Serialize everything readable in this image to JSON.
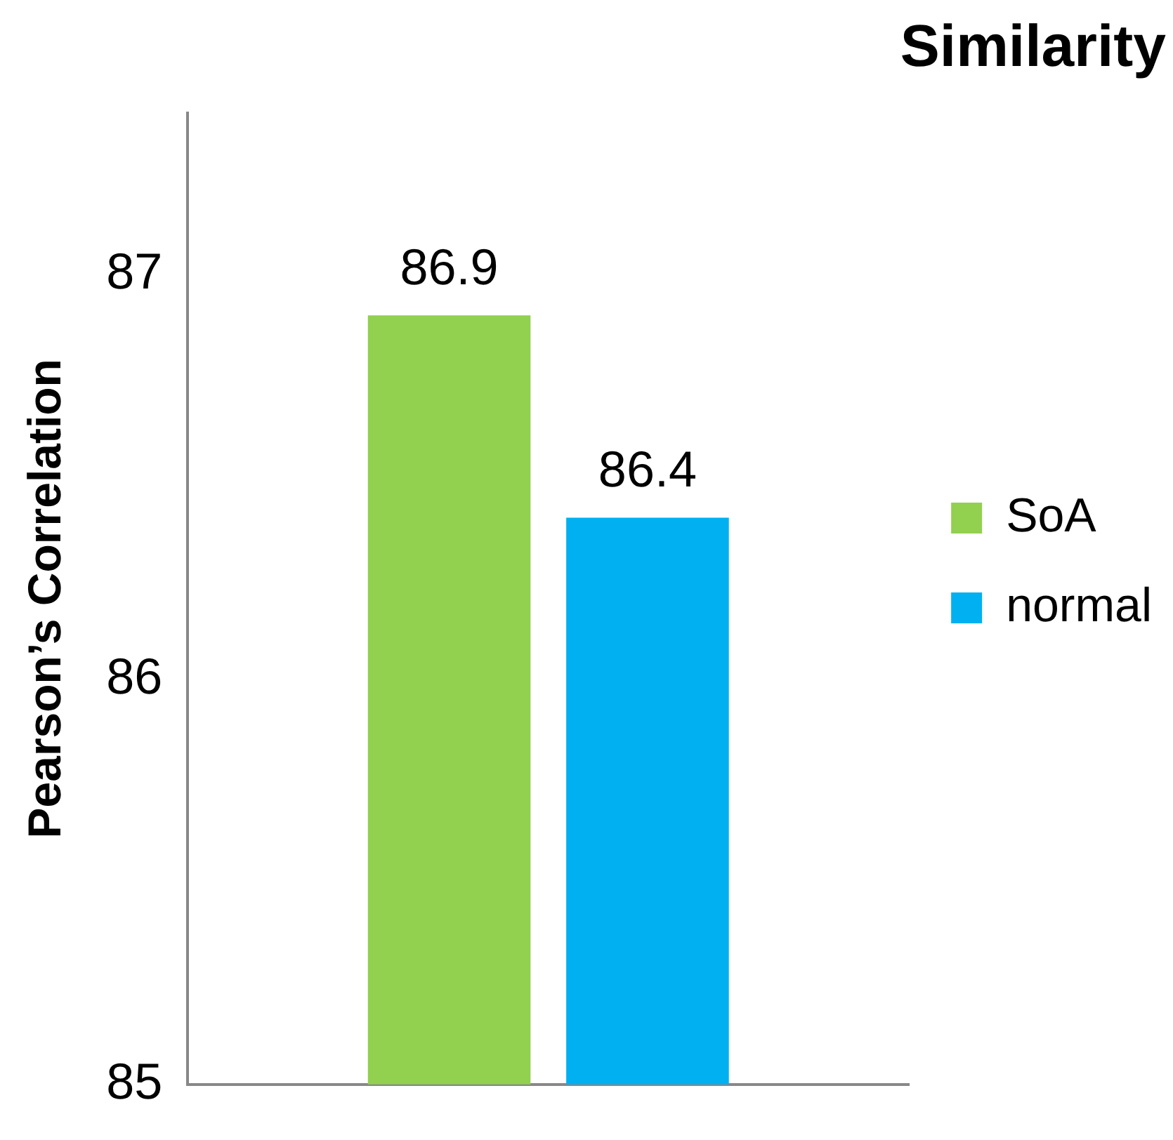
{
  "chart_data": {
    "type": "bar",
    "title": "Similarity",
    "ylabel": "Pearson’s Correlation",
    "categories": [
      null
    ],
    "series": [
      {
        "name": "SoA",
        "color": "#92d050",
        "values": [
          86.9
        ]
      },
      {
        "name": "normal",
        "color": "#00b0f0",
        "values": [
          86.4
        ]
      }
    ],
    "ylim": [
      85,
      87.4
    ],
    "yticks": [
      85,
      86,
      87
    ],
    "grid": false,
    "legend": "right",
    "data_labels": true
  }
}
